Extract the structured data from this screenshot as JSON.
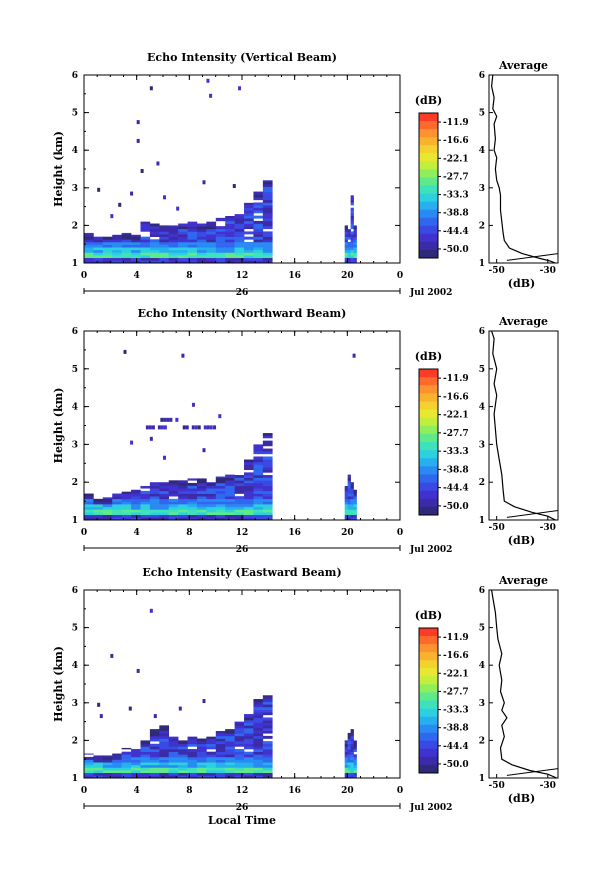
{
  "date_label": "Jul 2002",
  "local_time_label": "Local Time",
  "colorbar": {
    "unit": "(dB)",
    "ticks": [
      "-11.9",
      "-16.6",
      "-22.1",
      "-27.7",
      "-33.3",
      "-38.8",
      "-44.4",
      "-50.0"
    ],
    "colors": [
      "#fd3c28",
      "#fd6a2b",
      "#fc9330",
      "#f9b12e",
      "#f5d12d",
      "#e8e832",
      "#c2ef3e",
      "#8eee5c",
      "#5ee98b",
      "#3fe1bb",
      "#2cd1df",
      "#27b0ee",
      "#2a8af3",
      "#3067ef",
      "#3a49e4",
      "#4032cf",
      "#3b2ba8",
      "#2e2a78"
    ]
  },
  "chart_data": [
    {
      "type": "heatmap",
      "title": "Echo Intensity (Vertical Beam)",
      "ylabel": "Height (km)",
      "x_ticks": [
        "0",
        "4",
        "8",
        "12",
        "16",
        "20",
        "0"
      ],
      "date_tick": "26",
      "y_ticks": [
        "1",
        "2",
        "3",
        "4",
        "5",
        "6"
      ],
      "xlim": [
        0,
        24
      ],
      "ylim": [
        1,
        6
      ],
      "columns": [
        {
          "t0": 0,
          "t1": 14.3,
          "top": [
            1.8,
            1.7,
            1.7,
            1.75,
            1.8,
            1.75,
            2.1,
            2.05,
            2.0,
            2.0,
            2.05,
            2.1,
            2.05,
            2.1,
            2.2,
            2.25,
            2.3,
            2.6,
            2.9,
            3.2
          ]
        },
        {
          "t0": 19.8,
          "t1": 20.7,
          "top": [
            2.0,
            1.9,
            2.8,
            2.0
          ]
        }
      ],
      "scatter": [
        [
          2.0,
          2.3
        ],
        [
          3.5,
          2.9
        ],
        [
          4.0,
          4.3
        ],
        [
          4.0,
          4.8
        ],
        [
          5.0,
          5.7
        ],
        [
          5.5,
          3.7
        ],
        [
          6.0,
          2.8
        ],
        [
          7.0,
          2.5
        ],
        [
          9.3,
          5.9
        ],
        [
          9.5,
          5.5
        ],
        [
          9.0,
          3.2
        ],
        [
          1.0,
          3.0
        ],
        [
          2.6,
          2.6
        ],
        [
          4.3,
          3.5
        ],
        [
          11.3,
          3.1
        ],
        [
          11.7,
          5.7
        ]
      ],
      "average": {
        "x_ticks": [
          "-50",
          "-30"
        ],
        "title": "Average",
        "xlabel": "(dB)",
        "xlim": [
          -53,
          -26
        ],
        "points": [
          [
            -27,
            1.0
          ],
          [
            -29,
            1.05
          ],
          [
            -33,
            1.12
          ],
          [
            -40,
            1.25
          ],
          [
            -45,
            1.4
          ],
          [
            -47,
            1.6
          ],
          [
            -47.5,
            1.8
          ],
          [
            -48,
            2.1
          ],
          [
            -48.5,
            2.4
          ],
          [
            -48.5,
            2.8
          ],
          [
            -49,
            3.0
          ],
          [
            -50,
            3.2
          ],
          [
            -50.5,
            3.5
          ],
          [
            -50,
            3.8
          ],
          [
            -51,
            4.0
          ],
          [
            -50.5,
            4.3
          ],
          [
            -51,
            4.7
          ],
          [
            -50,
            4.9
          ],
          [
            -51.5,
            5.1
          ],
          [
            -51,
            5.4
          ],
          [
            -52,
            5.7
          ],
          [
            -51.5,
            6.0
          ]
        ]
      }
    },
    {
      "type": "heatmap",
      "title": "Echo Intensity (Northward Beam)",
      "ylabel": "Height (km)",
      "x_ticks": [
        "0",
        "4",
        "8",
        "12",
        "16",
        "20",
        "0"
      ],
      "date_tick": "26",
      "y_ticks": [
        "1",
        "2",
        "3",
        "4",
        "5",
        "6"
      ],
      "xlim": [
        0,
        24
      ],
      "ylim": [
        1,
        6
      ],
      "columns": [
        {
          "t0": 0,
          "t1": 14.3,
          "top": [
            1.7,
            1.6,
            1.6,
            1.7,
            1.75,
            1.8,
            1.9,
            2.0,
            2.0,
            2.1,
            2.05,
            2.1,
            2.1,
            2.0,
            2.15,
            2.2,
            2.3,
            2.6,
            3.0,
            3.3
          ]
        },
        {
          "t0": 19.8,
          "t1": 20.7,
          "top": [
            1.9,
            2.2,
            2.0,
            1.8
          ]
        }
      ],
      "scatter": [
        [
          3.0,
          5.5
        ],
        [
          7.4,
          5.4
        ],
        [
          8.2,
          4.1
        ],
        [
          10.2,
          3.8
        ],
        [
          5.0,
          3.2
        ],
        [
          6.0,
          2.7
        ],
        [
          9.0,
          2.9
        ],
        [
          3.5,
          3.1
        ],
        [
          20.4,
          5.4
        ]
      ],
      "hbands": [
        [
          4.7,
          6.4,
          3.45
        ],
        [
          7.5,
          9.7,
          3.45
        ],
        [
          9.8,
          10.4,
          3.45
        ],
        [
          5.8,
          7.0,
          3.65
        ]
      ],
      "average": {
        "x_ticks": [
          "-50",
          "-30"
        ],
        "title": "Average",
        "xlabel": "(dB)",
        "xlim": [
          -53,
          -26
        ],
        "points": [
          [
            -27,
            1.0
          ],
          [
            -30,
            1.1
          ],
          [
            -36,
            1.2
          ],
          [
            -43,
            1.35
          ],
          [
            -47,
            1.5
          ],
          [
            -47.5,
            1.8
          ],
          [
            -48,
            2.2
          ],
          [
            -49,
            2.6
          ],
          [
            -50,
            3.0
          ],
          [
            -50.5,
            3.4
          ],
          [
            -51,
            3.8
          ],
          [
            -50,
            4.3
          ],
          [
            -51,
            4.6
          ],
          [
            -50,
            5.0
          ],
          [
            -51.5,
            5.4
          ],
          [
            -51,
            5.8
          ],
          [
            -52,
            6.0
          ]
        ]
      }
    },
    {
      "type": "heatmap",
      "title": "Echo Intensity (Eastward Beam)",
      "ylabel": "Height (km)",
      "x_ticks": [
        "0",
        "4",
        "8",
        "12",
        "16",
        "20",
        "0"
      ],
      "date_tick": "26",
      "y_ticks": [
        "1",
        "2",
        "3",
        "4",
        "5",
        "6"
      ],
      "xlim": [
        0,
        24
      ],
      "ylim": [
        1,
        6
      ],
      "columns": [
        {
          "t0": 0,
          "t1": 14.3,
          "top": [
            1.65,
            1.6,
            1.6,
            1.65,
            1.8,
            1.8,
            2.0,
            2.3,
            2.4,
            2.1,
            2.0,
            2.1,
            2.05,
            2.1,
            2.25,
            2.3,
            2.5,
            2.7,
            3.1,
            3.2
          ]
        },
        {
          "t0": 19.8,
          "t1": 20.7,
          "top": [
            2.0,
            2.2,
            2.3,
            2.0
          ]
        }
      ],
      "scatter": [
        [
          1.2,
          2.7
        ],
        [
          5.0,
          5.5
        ],
        [
          2.0,
          4.3
        ],
        [
          4.0,
          3.9
        ],
        [
          7.2,
          2.9
        ],
        [
          1.0,
          3.0
        ],
        [
          3.4,
          2.9
        ],
        [
          5.3,
          2.7
        ],
        [
          9.0,
          3.1
        ]
      ],
      "average": {
        "x_ticks": [
          "-50",
          "-30"
        ],
        "title": "Average",
        "xlabel": "(dB)",
        "xlim": [
          -53,
          -26
        ],
        "points": [
          [
            -26.5,
            1.0
          ],
          [
            -30,
            1.1
          ],
          [
            -37,
            1.2
          ],
          [
            -44,
            1.35
          ],
          [
            -48,
            1.5
          ],
          [
            -48.5,
            1.8
          ],
          [
            -47,
            2.1
          ],
          [
            -48,
            2.4
          ],
          [
            -46,
            2.6
          ],
          [
            -48,
            2.8
          ],
          [
            -47,
            3.0
          ],
          [
            -48.5,
            3.3
          ],
          [
            -48,
            3.6
          ],
          [
            -49,
            4.0
          ],
          [
            -48,
            4.3
          ],
          [
            -49.5,
            4.7
          ],
          [
            -50,
            5.0
          ],
          [
            -50.5,
            5.4
          ],
          [
            -51.5,
            5.8
          ],
          [
            -52,
            6.0
          ]
        ]
      }
    }
  ]
}
